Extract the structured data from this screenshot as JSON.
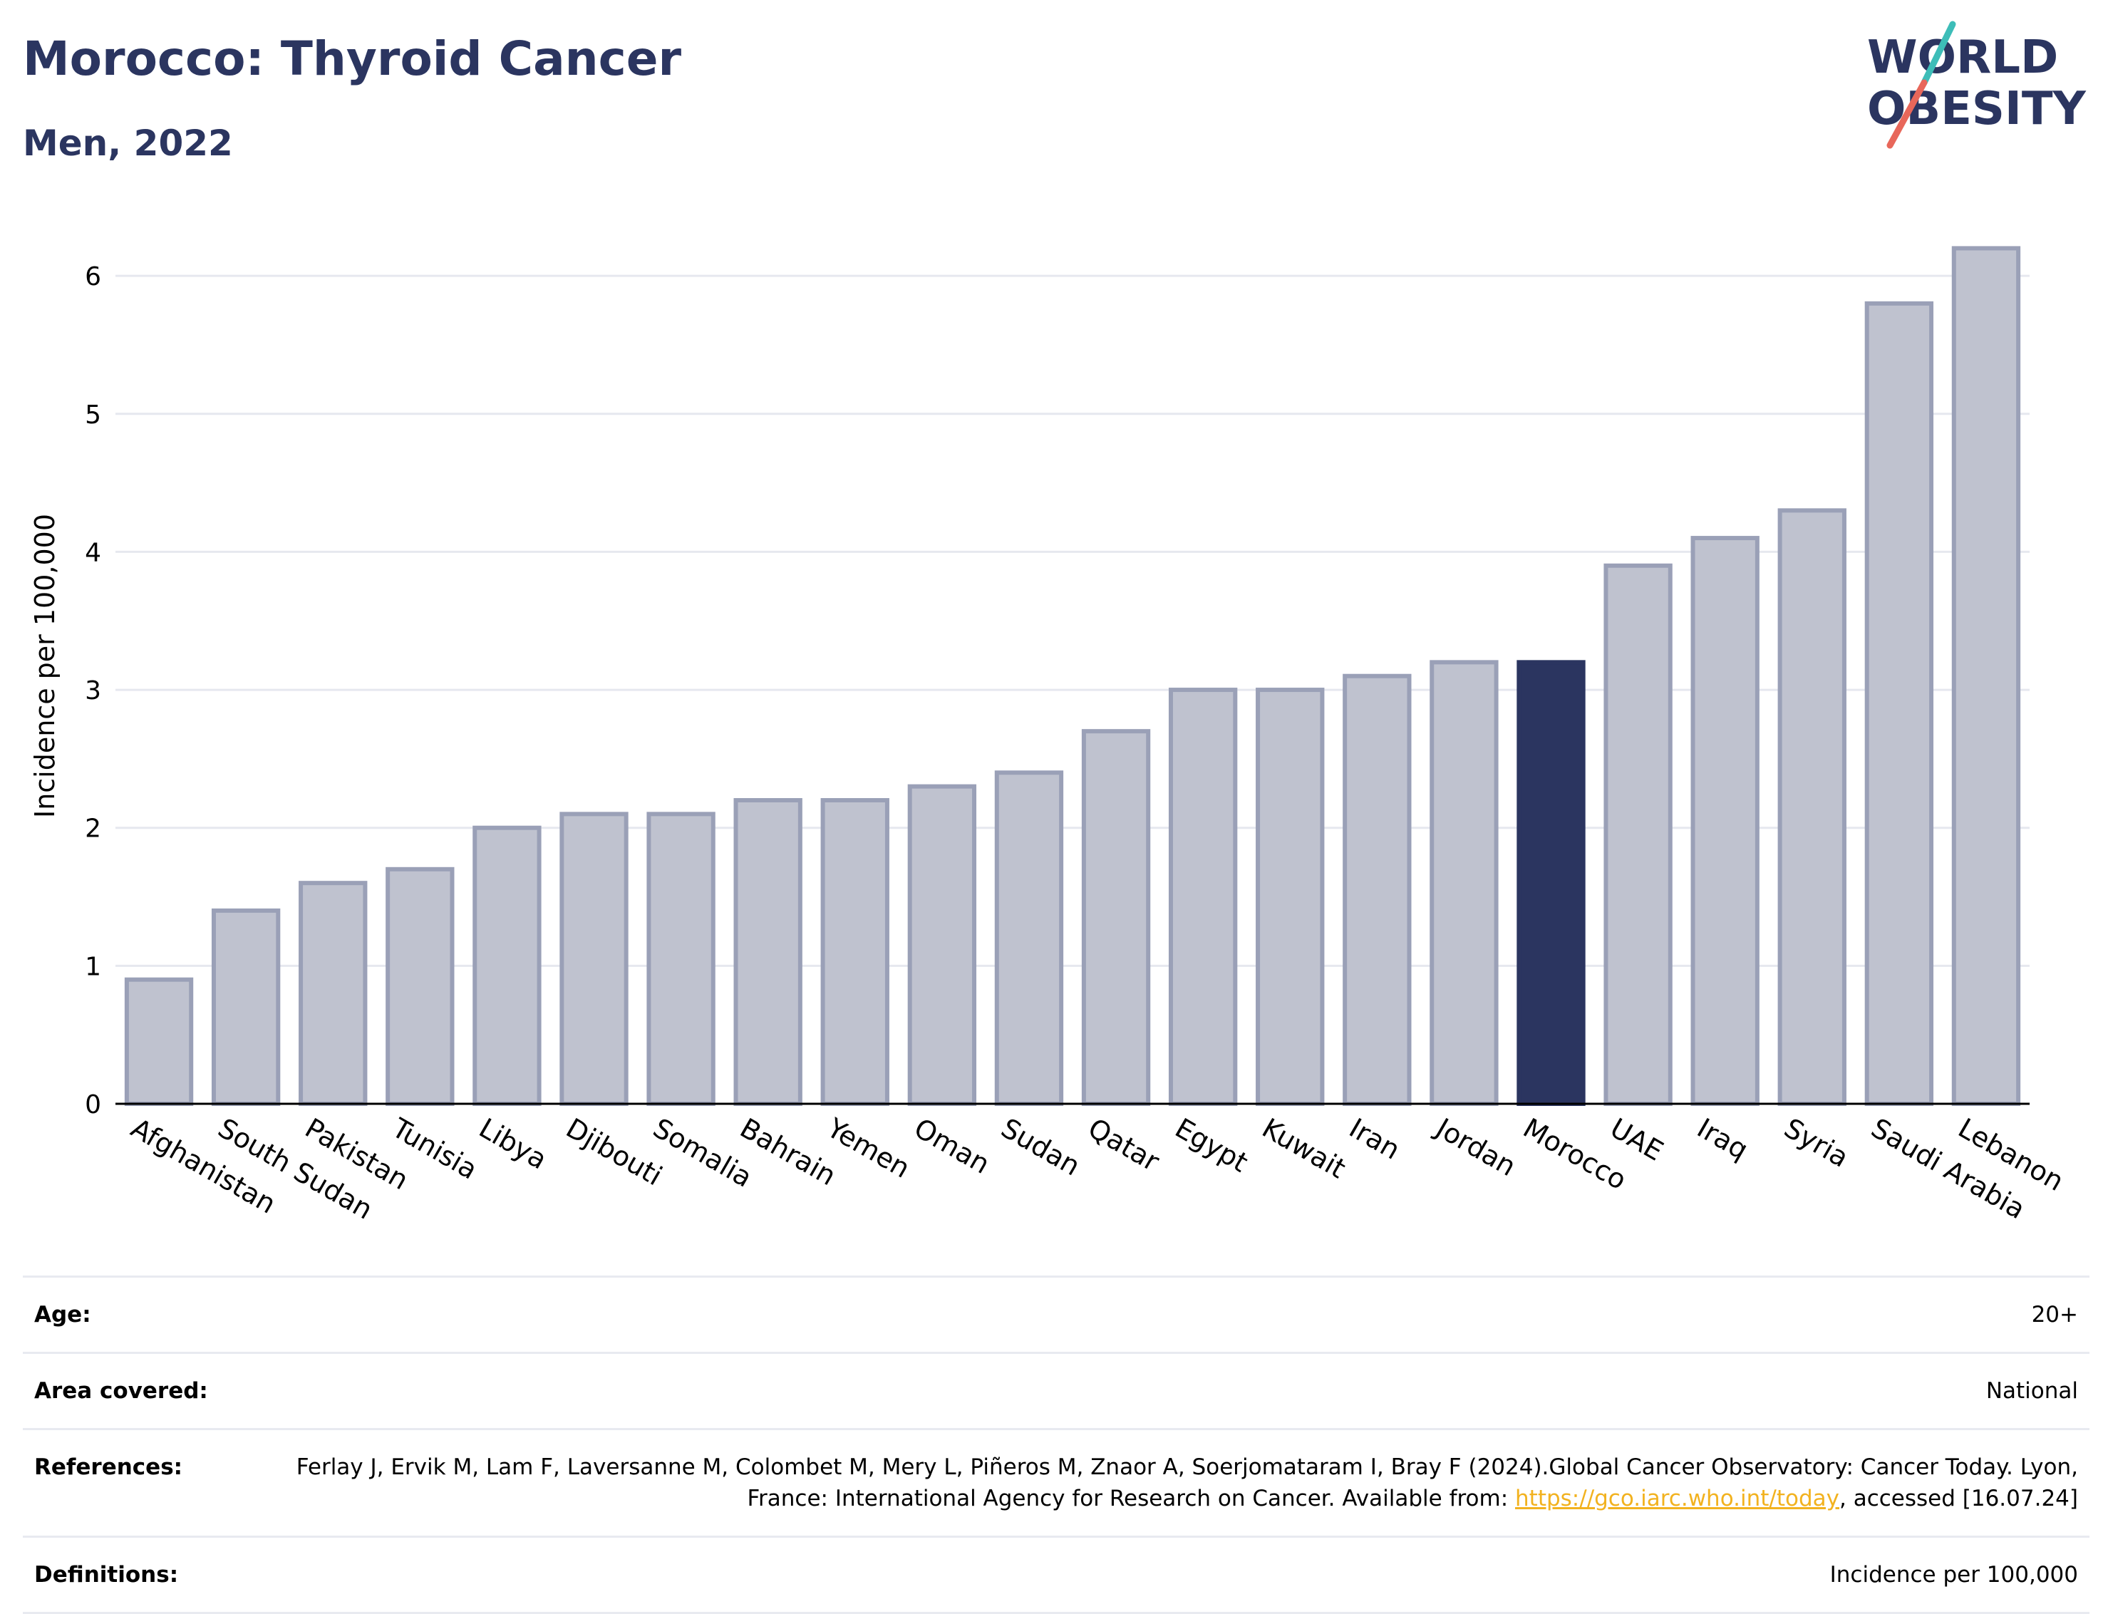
{
  "header": {
    "title": "Morocco: Thyroid Cancer",
    "subtitle": "Men, 2022"
  },
  "logo": {
    "line1": "WORLD",
    "line2": "OBESITY",
    "text_color": "#2b3560",
    "slash_top_color": "#3dbdb8",
    "slash_bottom_color": "#e8675a"
  },
  "chart_data": {
    "type": "bar",
    "title": "Morocco: Thyroid Cancer",
    "subtitle": "Men, 2022",
    "xlabel": "",
    "ylabel": "Incidence per 100,000",
    "ylim": [
      0,
      6.45
    ],
    "yticks": [
      0,
      1,
      2,
      3,
      4,
      5,
      6
    ],
    "grid": true,
    "highlight": "Morocco",
    "colors": {
      "bar": "#bfc2cf",
      "bar_border": "#9aa0b7",
      "highlight": "#2b3560"
    },
    "categories": [
      "Afghanistan",
      "South Sudan",
      "Pakistan",
      "Tunisia",
      "Libya",
      "Djibouti",
      "Somalia",
      "Bahrain",
      "Yemen",
      "Oman",
      "Sudan",
      "Qatar",
      "Egypt",
      "Kuwait",
      "Iran",
      "Jordan",
      "Morocco",
      "UAE",
      "Iraq",
      "Syria",
      "Saudi Arabia",
      "Lebanon"
    ],
    "values": [
      0.9,
      1.4,
      1.6,
      1.7,
      2.0,
      2.1,
      2.1,
      2.2,
      2.2,
      2.3,
      2.4,
      2.7,
      3.0,
      3.0,
      3.1,
      3.2,
      3.2,
      3.9,
      4.1,
      4.3,
      5.8,
      6.2
    ]
  },
  "info": {
    "age": {
      "label": "Age:",
      "value": "20+"
    },
    "area": {
      "label": "Area covered:",
      "value": "National"
    },
    "references": {
      "label": "References:",
      "text_before": "Ferlay J, Ervik M, Lam F, Laversanne M, Colombet M, Mery L, Piñeros M, Znaor A, Soerjomataram I, Bray F (2024).Global Cancer Observatory: Cancer Today. Lyon, France: International Agency for Research on Cancer. Available from: ",
      "link": "https://gco.iarc.who.int/today",
      "text_after": ", accessed [16.07.24]"
    },
    "definitions": {
      "label": "Definitions:",
      "value": "Incidence per 100,000"
    }
  }
}
